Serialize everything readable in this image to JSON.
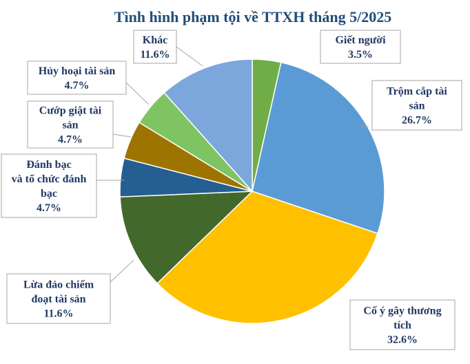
{
  "chart_data": {
    "type": "pie",
    "title": "Tình hình phạm tội về TTXH tháng 5/2025",
    "slices": [
      {
        "label_lines": [
          "Giết người"
        ],
        "value": 3.5,
        "value_label": "3.5%",
        "color": "#70ad47"
      },
      {
        "label_lines": [
          "Trộm cắp tài",
          "sản"
        ],
        "value": 26.7,
        "value_label": "26.7%",
        "color": "#5b9bd5"
      },
      {
        "label_lines": [
          "Cố ý gây thương",
          "tích"
        ],
        "value": 32.6,
        "value_label": "32.6%",
        "color": "#ffc000"
      },
      {
        "label_lines": [
          "Lừa đảo chiếm",
          "đoạt tài sản"
        ],
        "value": 11.6,
        "value_label": "11.6%",
        "color": "#43682b"
      },
      {
        "label_lines": [
          "Đánh bạc",
          "và tổ chức đánh",
          "bạc"
        ],
        "value": 4.7,
        "value_label": "4.7%",
        "color": "#255e91"
      },
      {
        "label_lines": [
          "Cướp giật tài",
          "sản"
        ],
        "value": 4.7,
        "value_label": "4.7%",
        "color": "#9e7400"
      },
      {
        "label_lines": [
          "Hủy hoại tài sản"
        ],
        "value": 4.7,
        "value_label": "4.7%",
        "color": "#7fc463"
      },
      {
        "label_lines": [
          "Khác"
        ],
        "value": 11.6,
        "value_label": "11.6%",
        "color": "#7ba7dc"
      }
    ]
  }
}
